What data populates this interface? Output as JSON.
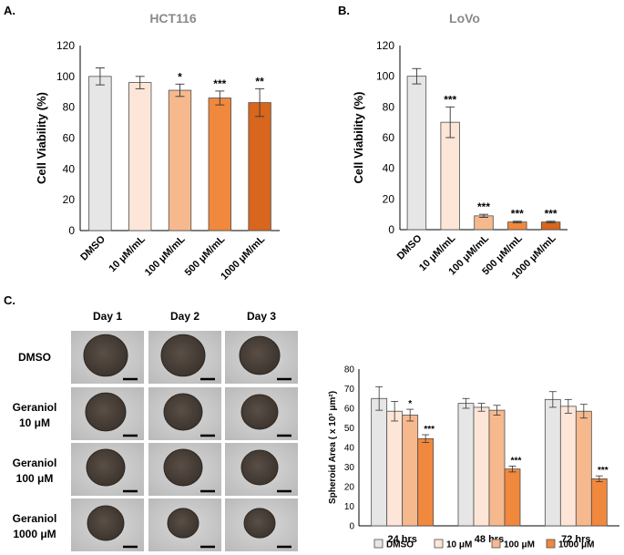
{
  "panel_letters": {
    "a": "A.",
    "b": "B.",
    "c": "C."
  },
  "colors": {
    "dmso": "#e6e6e6",
    "dose1": "#fde6d8",
    "dose2": "#f6b98e",
    "dose3": "#f0883e",
    "dose4": "#d8661e",
    "edge": "#4d4d4d",
    "micro_bg": "#c9c9c9",
    "spheroid": "#4a4038"
  },
  "chart_data": [
    {
      "type": "bar",
      "title": "HCT116",
      "ylabel": "Cell Viability (%)",
      "xlabel": "",
      "categories": [
        "DMSO",
        "10 μM/mL",
        "100 μM/mL",
        "500 μM/mL",
        "1000 μM/mL"
      ],
      "values": [
        100,
        96,
        91,
        86,
        83
      ],
      "errors": [
        5.5,
        4,
        4,
        4.5,
        9
      ],
      "significance": [
        "",
        "",
        "*",
        "***",
        "**"
      ],
      "ylim": [
        0,
        120
      ],
      "yticks": [
        0,
        20,
        40,
        60,
        80,
        100,
        120
      ]
    },
    {
      "type": "bar",
      "title": "LoVo",
      "ylabel": "Cell Viability (%)",
      "xlabel": "",
      "categories": [
        "DMSO",
        "10 μM/mL",
        "100 μM/mL",
        "500 μM/mL",
        "1000 μM/mL"
      ],
      "values": [
        100,
        70,
        9,
        5,
        5
      ],
      "errors": [
        5,
        10,
        1,
        0.5,
        0.5
      ],
      "significance": [
        "",
        "***",
        "***",
        "***",
        "***"
      ],
      "ylim": [
        0,
        120
      ],
      "yticks": [
        0,
        20,
        40,
        60,
        80,
        100,
        120
      ]
    },
    {
      "type": "bar",
      "title": "",
      "ylabel": "Spheroid Area ( x 10³ μm²)",
      "xlabel": "",
      "categories": [
        "24 hrs",
        "48 hrs",
        "72 hrs"
      ],
      "series": [
        {
          "name": "DMSO",
          "values": [
            65,
            62.5,
            64.5
          ],
          "errors": [
            6,
            2.5,
            4
          ]
        },
        {
          "name": "10 μM",
          "values": [
            58.5,
            60.5,
            61
          ],
          "errors": [
            5,
            2,
            3.5
          ]
        },
        {
          "name": "100 μM",
          "values": [
            56.5,
            59,
            58.5
          ],
          "errors": [
            3,
            2.5,
            3.5
          ]
        },
        {
          "name": "1000 μM",
          "values": [
            44.5,
            29,
            24
          ],
          "errors": [
            2,
            1.5,
            1.5
          ]
        }
      ],
      "significance": [
        [
          "",
          "",
          "*",
          "***"
        ],
        [
          "",
          "",
          "",
          "***"
        ],
        [
          "",
          "",
          "",
          "***"
        ]
      ],
      "ylim": [
        0,
        80
      ],
      "yticks": [
        0,
        10,
        20,
        30,
        40,
        50,
        60,
        70,
        80
      ],
      "legend_position": "bottom"
    }
  ],
  "micrographs": {
    "days": [
      "Day 1",
      "Day 2",
      "Day 3"
    ],
    "rows": [
      {
        "line1": "DMSO",
        "line2": ""
      },
      {
        "line1": "Geraniol",
        "line2": "10 μM"
      },
      {
        "line1": "Geraniol",
        "line2": "100 μM"
      },
      {
        "line1": "Geraniol",
        "line2": "1000 μM"
      }
    ]
  }
}
